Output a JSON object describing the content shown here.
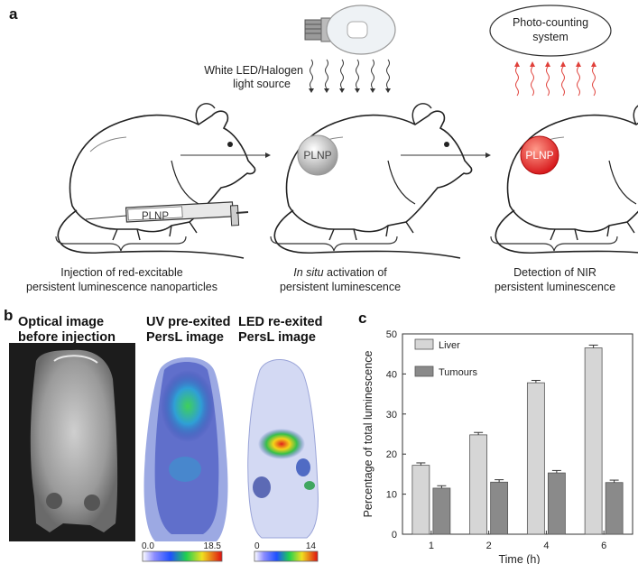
{
  "panel_a": {
    "letter": "a",
    "light_label_line1": "White LED/Halogen",
    "light_label_line2": "light source",
    "photo_system_line1": "Photo-counting",
    "photo_system_line2": "system",
    "syringe_label": "PLNP",
    "mouse2_label": "PLNP",
    "mouse3_label": "PLNP",
    "caption1_line1": "Injection of red-excitable",
    "caption1_line2": "persistent luminescence nanoparticles",
    "caption2_italic": "In situ",
    "caption2_rest": " activation of",
    "caption2_line2": "persistent luminescence",
    "caption3_line1": "Detection of NIR",
    "caption3_line2": "persistent luminescence"
  },
  "panel_b": {
    "letter": "b",
    "head1_line1": "Optical image",
    "head1_line2": "before injection",
    "head2_line1": "UV pre-exited",
    "head2_line2": "PersL image",
    "head3_line1": "LED re-exited",
    "head3_line2": "PersL image",
    "scale1_min": "0.0",
    "scale1_max": "18.5",
    "scale2_min": "0",
    "scale2_max": "14"
  },
  "panel_c": {
    "letter": "c"
  },
  "chart_data": {
    "type": "bar",
    "categories": [
      "1",
      "2",
      "4",
      "6"
    ],
    "series": [
      {
        "name": "Liver",
        "values": [
          17.2,
          24.8,
          37.8,
          46.5
        ],
        "errors": [
          0.6,
          0.6,
          0.6,
          0.7
        ],
        "color": "#d6d6d6"
      },
      {
        "name": "Tumours",
        "values": [
          11.5,
          13.0,
          15.3,
          12.9
        ],
        "errors": [
          0.6,
          0.6,
          0.6,
          0.6
        ],
        "color": "#8a8a8a"
      }
    ],
    "xlabel": "Time (h)",
    "ylabel": "Percentage of total luminescence",
    "ylim": [
      0,
      50
    ],
    "yticks": [
      "0",
      "10",
      "20",
      "30",
      "40",
      "50"
    ],
    "legend_placement": "top-left",
    "grid": false
  }
}
